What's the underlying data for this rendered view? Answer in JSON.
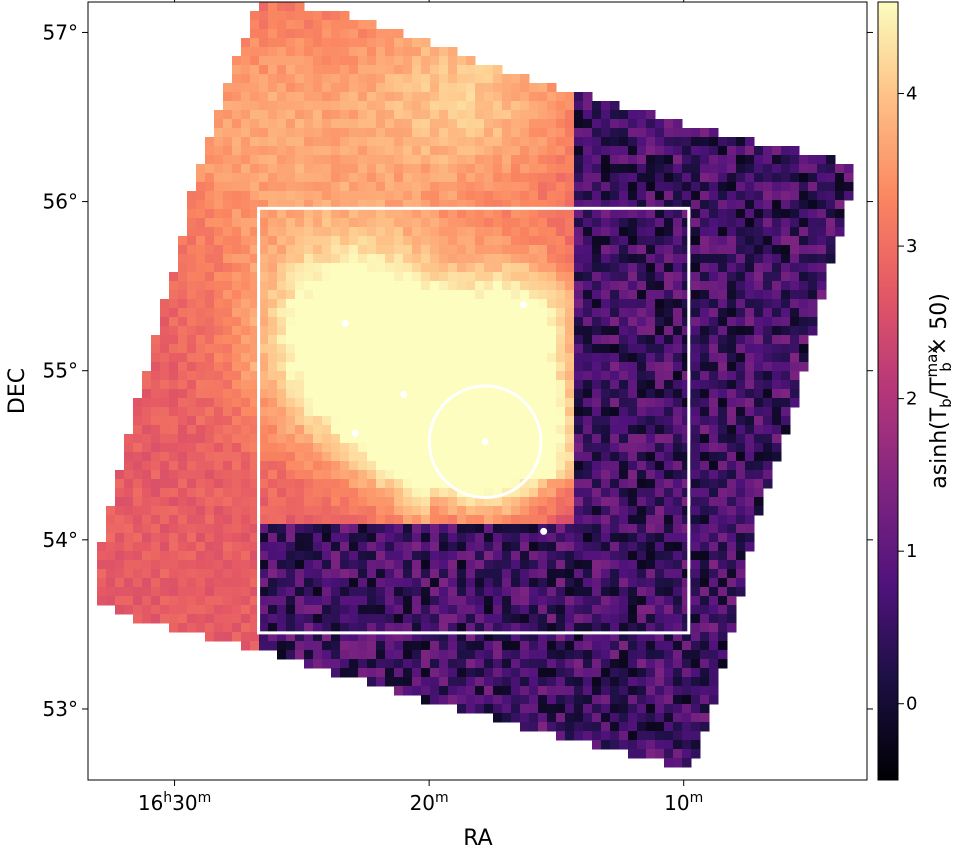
{
  "chart_data": {
    "type": "heatmap",
    "title": "",
    "xlabel": "RA",
    "ylabel": "DEC",
    "x_ticks": [
      {
        "label_main": "16",
        "sup1": "h",
        "label_mid": "30",
        "sup2": "m"
      },
      {
        "label_main": "20",
        "sup1": "m",
        "label_mid": "",
        "sup2": ""
      },
      {
        "label_main": "10",
        "sup1": "m",
        "label_mid": "",
        "sup2": ""
      }
    ],
    "x_tick_values_min": [
      30,
      20,
      10
    ],
    "xlim_min_of_16h": [
      33.4,
      2.8
    ],
    "y_ticks": [
      "53°",
      "54°",
      "55°",
      "56°",
      "57°"
    ],
    "y_tick_values": [
      53,
      54,
      55,
      56,
      57
    ],
    "ylim": [
      52.58,
      57.18
    ],
    "colorbar": {
      "label_prefix": "asinh(T",
      "label_sub1": "b",
      "label_mid": "/T",
      "label_sup": "max",
      "label_sub2": "b",
      "label_suffix": " × 50)",
      "ticks": [
        "0",
        "1",
        "2",
        "3",
        "4"
      ],
      "tick_values": [
        0,
        1,
        2,
        3,
        4
      ],
      "range": [
        -0.5,
        4.6
      ],
      "colormap": "magma"
    },
    "rectangle": {
      "ra_min": [
        26.7,
        9.8
      ],
      "dec": [
        53.45,
        55.96
      ]
    },
    "circle": {
      "ra_min": 17.8,
      "dec": 54.58,
      "radius_deg": 0.33
    },
    "points": [
      {
        "ra_min": 23.3,
        "dec": 55.28
      },
      {
        "ra_min": 22.9,
        "dec": 54.63
      },
      {
        "ra_min": 21.0,
        "dec": 54.86
      },
      {
        "ra_min": 16.3,
        "dec": 55.39
      },
      {
        "ra_min": 17.8,
        "dec": 54.58
      },
      {
        "ra_min": 15.5,
        "dec": 54.05
      }
    ]
  }
}
